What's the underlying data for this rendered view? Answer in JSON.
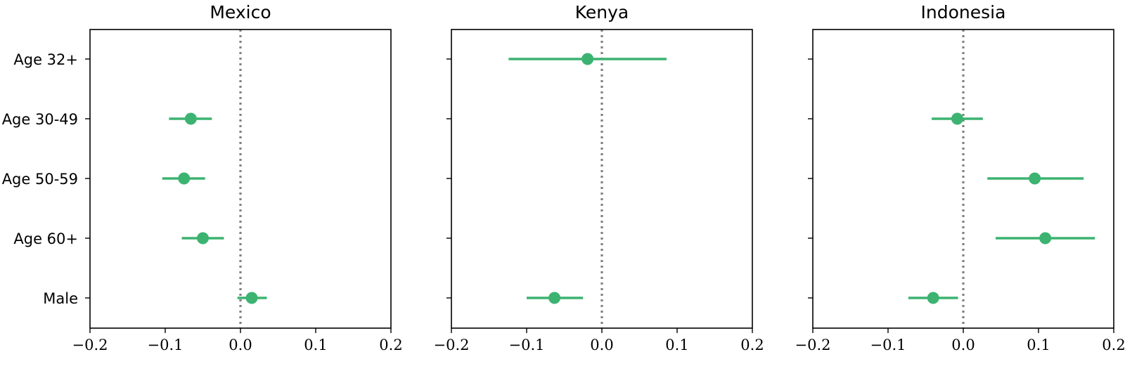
{
  "chart_data": [
    {
      "type": "scatter",
      "title": "Mexico",
      "xlim": [
        -0.2,
        0.2
      ],
      "x_ticks": [
        "−0.2",
        "−0.1",
        "0.0",
        "0.1",
        "0.2"
      ],
      "x_tick_values": [
        -0.2,
        -0.1,
        0.0,
        0.1,
        0.2
      ],
      "reference_line_x": 0.0,
      "categories": [
        "Age 32+",
        "Age 30-49",
        "Age 50-59",
        "Age 60+",
        "Male"
      ],
      "points": [
        {
          "category": "Age 30-49",
          "estimate": -0.066,
          "ci": [
            -0.095,
            -0.038
          ]
        },
        {
          "category": "Age 50-59",
          "estimate": -0.075,
          "ci": [
            -0.104,
            -0.047
          ]
        },
        {
          "category": "Age 60+",
          "estimate": -0.05,
          "ci": [
            -0.078,
            -0.022
          ]
        },
        {
          "category": "Male",
          "estimate": 0.015,
          "ci": [
            -0.004,
            0.035
          ]
        }
      ]
    },
    {
      "type": "scatter",
      "title": "Kenya",
      "xlim": [
        -0.2,
        0.2
      ],
      "x_ticks": [
        "−0.2",
        "−0.1",
        "0.0",
        "0.1",
        "0.2"
      ],
      "x_tick_values": [
        -0.2,
        -0.1,
        0.0,
        0.1,
        0.2
      ],
      "reference_line_x": 0.0,
      "categories": [
        "Age 32+",
        "Age 30-49",
        "Age 50-59",
        "Age 60+",
        "Male"
      ],
      "points": [
        {
          "category": "Age 32+",
          "estimate": -0.019,
          "ci": [
            -0.124,
            0.086
          ]
        },
        {
          "category": "Male",
          "estimate": -0.063,
          "ci": [
            -0.1,
            -0.025
          ]
        }
      ]
    },
    {
      "type": "scatter",
      "title": "Indonesia",
      "xlim": [
        -0.2,
        0.2
      ],
      "x_ticks": [
        "−0.2",
        "−0.1",
        "0.0",
        "0.1",
        "0.2"
      ],
      "x_tick_values": [
        -0.2,
        -0.1,
        0.0,
        0.1,
        0.2
      ],
      "reference_line_x": 0.0,
      "categories": [
        "Age 32+",
        "Age 30-49",
        "Age 50-59",
        "Age 60+",
        "Male"
      ],
      "points": [
        {
          "category": "Age 30-49",
          "estimate": -0.008,
          "ci": [
            -0.042,
            0.026
          ]
        },
        {
          "category": "Age 50-59",
          "estimate": 0.095,
          "ci": [
            0.032,
            0.16
          ]
        },
        {
          "category": "Age 60+",
          "estimate": 0.109,
          "ci": [
            0.043,
            0.175
          ]
        },
        {
          "category": "Male",
          "estimate": -0.04,
          "ci": [
            -0.073,
            -0.007
          ]
        }
      ]
    }
  ],
  "colors": {
    "point": "#3cb371",
    "reference_line": "#808080",
    "axis": "#000000"
  }
}
